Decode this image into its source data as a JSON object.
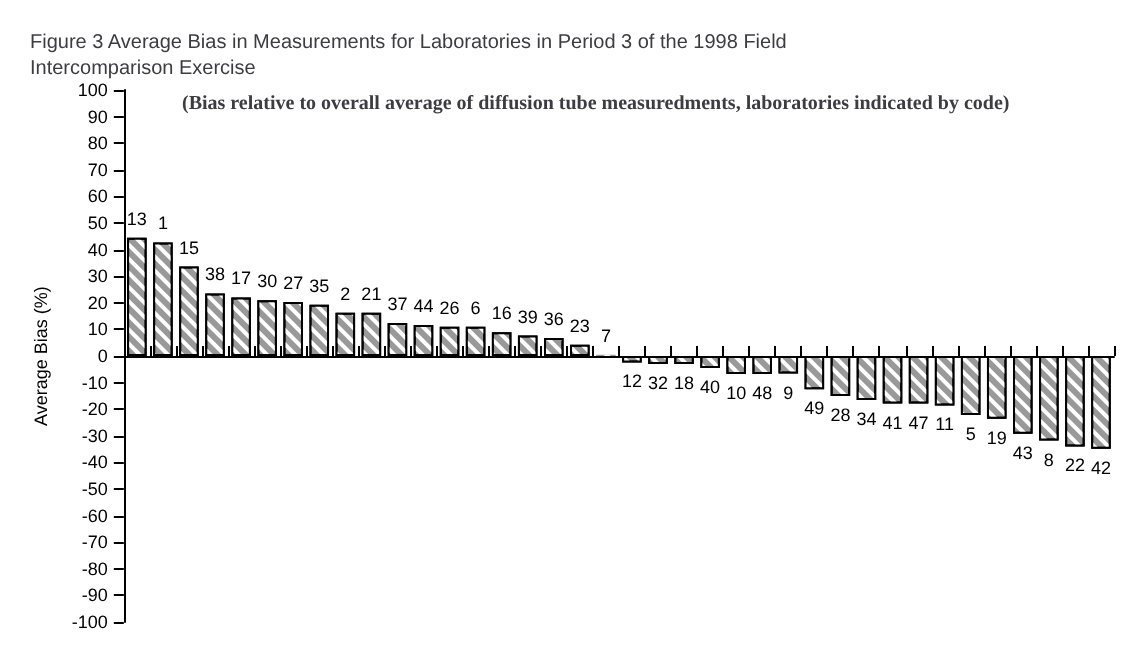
{
  "chart_data": {
    "type": "bar",
    "title": "Figure 3 Average Bias in Measurements for Laboratories in Period 3 of the 1998 Field\nIntercomparison Exercise",
    "subtitle": "(Bias relative to overall average of diffusion tube measuredments, laboratories indicated by code)",
    "ylabel": "Average Bias (%)",
    "categories": [
      "13",
      "1",
      "15",
      "38",
      "17",
      "30",
      "27",
      "35",
      "2",
      "21",
      "37",
      "44",
      "26",
      "6",
      "16",
      "39",
      "36",
      "23",
      "7",
      "12",
      "32",
      "18",
      "40",
      "10",
      "48",
      "9",
      "49",
      "28",
      "34",
      "41",
      "47",
      "11",
      "5",
      "19",
      "43",
      "8",
      "22",
      "42"
    ],
    "values": [
      44.5,
      42.7,
      33.6,
      23.5,
      22,
      21,
      20.3,
      19.3,
      16.3,
      16.3,
      12.4,
      11.7,
      11,
      11,
      8.9,
      7.7,
      6.8,
      4.2,
      0.5,
      -2.4,
      -3,
      -3,
      -4.5,
      -6.8,
      -6.8,
      -6.6,
      -12.5,
      -15,
      -16.5,
      -17.9,
      -17.9,
      -18.6,
      -22.2,
      -23.6,
      -29.2,
      -31.8,
      -34,
      -34.9
    ],
    "color": "#999999",
    "ylim": [
      -100,
      100
    ],
    "yticks": [
      -100,
      -90,
      -80,
      -70,
      -60,
      -50,
      -40,
      -30,
      -20,
      -10,
      0,
      10,
      20,
      30,
      40,
      50,
      60,
      70,
      80,
      90,
      100
    ],
    "grid": false
  }
}
